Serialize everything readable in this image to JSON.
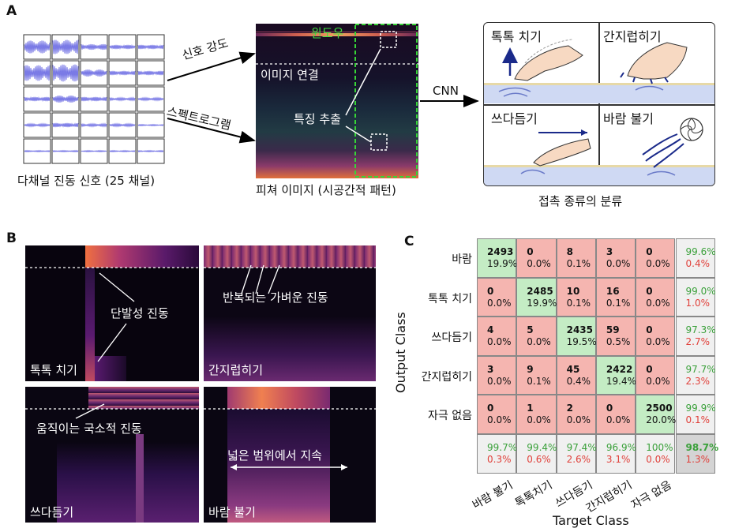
{
  "panelA": {
    "label": "A",
    "signal_caption": "다채널 진동 신호 (25 채널)",
    "arrow_signal_strength": "신호 강도",
    "arrow_spectrogram": "스펙트로그램",
    "window_label": "윈도우",
    "concat_label": "이미지 연결",
    "feature_extract_label": "특징 추출",
    "feature_caption": "피쳐 이미지 (시공간적 패턴)",
    "cnn_label": "CNN",
    "classes": {
      "tap": "톡톡 치기",
      "tickle": "간지럽히기",
      "stroke": "쓰다듬기",
      "blow": "바람 불기"
    },
    "classification_caption": "접촉 종류의 분류"
  },
  "panelB": {
    "label": "B",
    "tap_label": "톡톡 치기",
    "tap_note": "단발성 진동",
    "tickle_label": "간지럽히기",
    "tickle_note": "반복되는 가벼운 진동",
    "stroke_label": "쓰다듬기",
    "stroke_note": "움직이는 국소적 진동",
    "blow_label": "바람 불기",
    "blow_note": "넓은 범위에서 지속"
  },
  "panelC": {
    "label": "C",
    "ylabel": "Output Class",
    "xlabel": "Target Class",
    "row_labels": [
      "바람",
      "톡톡 치기",
      "쓰다듬기",
      "간지럽히기",
      "자극 없음"
    ],
    "col_labels": [
      "바람 불기",
      "톡톡치기",
      "쓰다듬기",
      "간지럽히기",
      "자극 없음"
    ],
    "rows": [
      {
        "cells": [
          [
            "2493",
            "19.9%"
          ],
          [
            "0",
            "0.0%"
          ],
          [
            "8",
            "0.1%"
          ],
          [
            "3",
            "0.0%"
          ],
          [
            "0",
            "0.0%"
          ]
        ],
        "summary": [
          "99.6%",
          "0.4%"
        ]
      },
      {
        "cells": [
          [
            "0",
            "0.0%"
          ],
          [
            "2485",
            "19.9%"
          ],
          [
            "10",
            "0.1%"
          ],
          [
            "16",
            "0.1%"
          ],
          [
            "0",
            "0.0%"
          ]
        ],
        "summary": [
          "99.0%",
          "1.0%"
        ]
      },
      {
        "cells": [
          [
            "4",
            "0.0%"
          ],
          [
            "5",
            "0.0%"
          ],
          [
            "2435",
            "19.5%"
          ],
          [
            "59",
            "0.5%"
          ],
          [
            "0",
            "0.0%"
          ]
        ],
        "summary": [
          "97.3%",
          "2.7%"
        ]
      },
      {
        "cells": [
          [
            "3",
            "0.0%"
          ],
          [
            "9",
            "0.1%"
          ],
          [
            "45",
            "0.4%"
          ],
          [
            "2422",
            "19.4%"
          ],
          [
            "0",
            "0.0%"
          ]
        ],
        "summary": [
          "97.7%",
          "2.3%"
        ]
      },
      {
        "cells": [
          [
            "0",
            "0.0%"
          ],
          [
            "1",
            "0.0%"
          ],
          [
            "2",
            "0.0%"
          ],
          [
            "0",
            "0.0%"
          ],
          [
            "2500",
            "20.0%"
          ]
        ],
        "summary": [
          "99.9%",
          "0.1%"
        ]
      }
    ],
    "col_summary": [
      [
        "99.7%",
        "0.3%"
      ],
      [
        "99.4%",
        "0.6%"
      ],
      [
        "97.4%",
        "2.6%"
      ],
      [
        "96.9%",
        "3.1%"
      ],
      [
        "100%",
        "0.0%"
      ]
    ],
    "overall": [
      "98.7%",
      "1.3%"
    ],
    "colors": {
      "diag": "#c4ecc4",
      "offdiag": "#f5b5b0",
      "summary": "#f0f0f0",
      "overall": "#d4d4d4",
      "good": "#3aa03a",
      "bad": "#e0403a"
    }
  }
}
